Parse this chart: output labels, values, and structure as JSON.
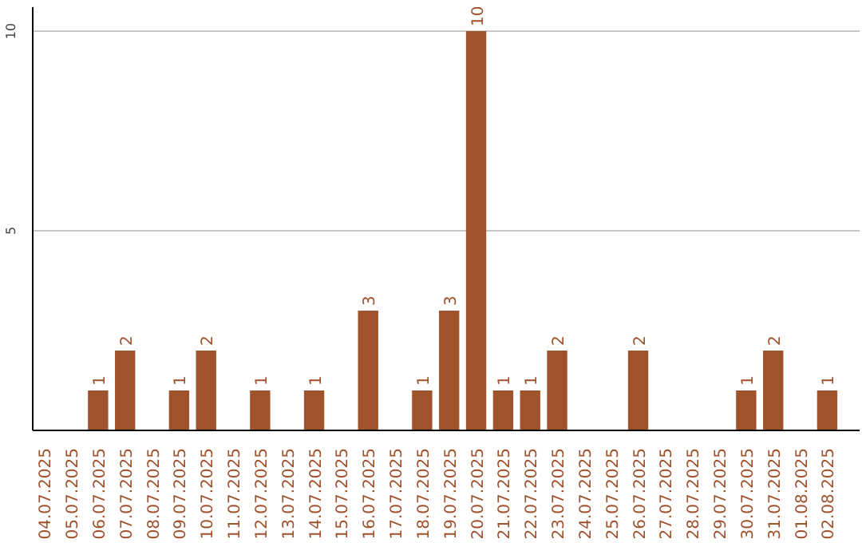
{
  "chart_data": {
    "type": "bar",
    "categories": [
      "04.07.2025",
      "05.07.2025",
      "06.07.2025",
      "07.07.2025",
      "08.07.2025",
      "09.07.2025",
      "10.07.2025",
      "11.07.2025",
      "12.07.2025",
      "13.07.2025",
      "14.07.2025",
      "15.07.2025",
      "16.07.2025",
      "17.07.2025",
      "18.07.2025",
      "19.07.2025",
      "20.07.2025",
      "21.07.2025",
      "22.07.2025",
      "23.07.2025",
      "24.07.2025",
      "25.07.2025",
      "26.07.2025",
      "27.07.2025",
      "28.07.2025",
      "29.07.2025",
      "30.07.2025",
      "31.07.2025",
      "01.08.2025",
      "02.08.2025"
    ],
    "values": [
      0,
      0,
      1,
      2,
      0,
      1,
      2,
      0,
      1,
      0,
      1,
      0,
      3,
      0,
      1,
      3,
      10,
      1,
      1,
      2,
      0,
      0,
      2,
      0,
      0,
      0,
      1,
      2,
      0,
      1
    ],
    "value_labels": [
      null,
      null,
      "1",
      "2",
      null,
      "1",
      "2",
      null,
      "1",
      null,
      "1",
      null,
      "3",
      null,
      "1",
      "3",
      "10",
      "1",
      "1",
      "2",
      null,
      null,
      "2",
      null,
      null,
      null,
      "1",
      "2",
      null,
      "1"
    ],
    "color": "#a0522d",
    "ylim": [
      0,
      10.6
    ],
    "yticks": [
      5,
      10
    ],
    "grid": "y"
  }
}
